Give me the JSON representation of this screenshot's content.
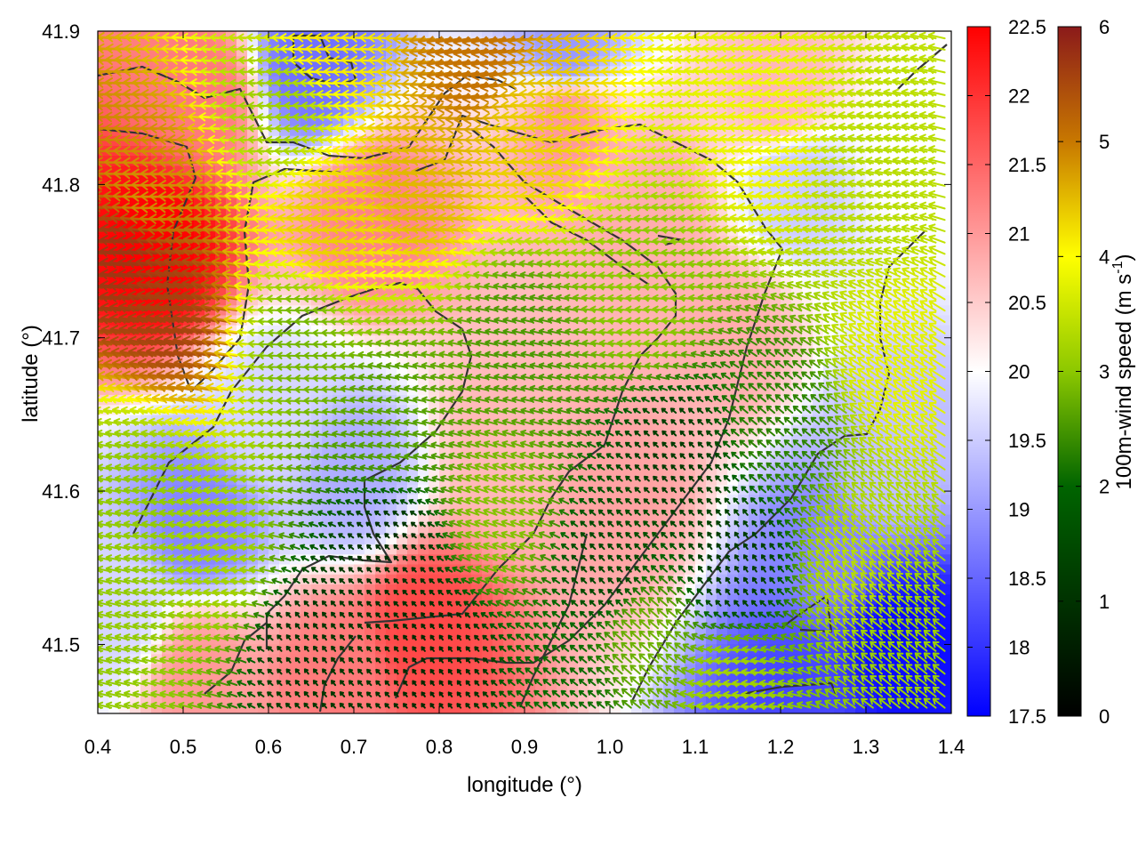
{
  "chart_data": {
    "type": "heatmap",
    "title": "",
    "xlabel": "longitude (°)",
    "ylabel": "latitude (°)",
    "xlim": [
      0.4,
      1.4
    ],
    "ylim": [
      41.455,
      41.9
    ],
    "x_ticks": [
      "0.4",
      "0.5",
      "0.6",
      "0.7",
      "0.8",
      "0.9",
      "1.0",
      "1.1",
      "1.2",
      "1.3",
      "1.4"
    ],
    "y_ticks": [
      "41.5",
      "41.6",
      "41.7",
      "41.8",
      "41.9"
    ],
    "temperature_colorbar": {
      "range": [
        17.5,
        22.5
      ],
      "ticks": [
        "17.5",
        "18",
        "18.5",
        "19",
        "19.5",
        "20",
        "20.5",
        "21",
        "21.5",
        "22",
        "22.5"
      ],
      "colors": [
        "#0000ff",
        "#ffffff",
        "#ff0000"
      ]
    },
    "wind_colorbar": {
      "label": "100m-wind speed (m s",
      "label_sup": "-1",
      "label_end": ")",
      "range": [
        0,
        6
      ],
      "ticks": [
        "0",
        "1",
        "2",
        "3",
        "4",
        "5",
        "6"
      ],
      "colors": [
        "#000000",
        "#006400",
        "#8cc800",
        "#ffff00",
        "#c87800",
        "#8b1a1a"
      ]
    },
    "temperature_field": [
      {
        "lon": 0.47,
        "lat": 41.76,
        "value": 22.5
      },
      {
        "lon": 0.52,
        "lat": 41.86,
        "value": 21.3
      },
      {
        "lon": 0.72,
        "lat": 41.78,
        "value": 21.2
      },
      {
        "lon": 0.95,
        "lat": 41.84,
        "value": 21.0
      },
      {
        "lon": 1.2,
        "lat": 41.86,
        "value": 20.7
      },
      {
        "lon": 0.78,
        "lat": 41.51,
        "value": 21.8
      },
      {
        "lon": 0.68,
        "lat": 41.48,
        "value": 21.3
      },
      {
        "lon": 0.52,
        "lat": 41.48,
        "value": 21.0
      },
      {
        "lon": 1.02,
        "lat": 41.6,
        "value": 20.9
      },
      {
        "lon": 1.14,
        "lat": 41.7,
        "value": 20.8
      },
      {
        "lon": 0.88,
        "lat": 41.63,
        "value": 20.7
      },
      {
        "lon": 1.05,
        "lat": 41.78,
        "value": 20.8
      },
      {
        "lon": 0.65,
        "lat": 41.88,
        "value": 18.6
      },
      {
        "lon": 0.95,
        "lat": 41.89,
        "value": 19.0
      },
      {
        "lon": 0.52,
        "lat": 41.58,
        "value": 18.8
      },
      {
        "lon": 0.7,
        "lat": 41.61,
        "value": 19.2
      },
      {
        "lon": 0.6,
        "lat": 41.65,
        "value": 19.6
      },
      {
        "lon": 1.34,
        "lat": 41.5,
        "value": 17.6
      },
      {
        "lon": 1.22,
        "lat": 41.47,
        "value": 18.2
      },
      {
        "lon": 1.25,
        "lat": 41.56,
        "value": 18.8
      },
      {
        "lon": 1.32,
        "lat": 41.62,
        "value": 19.4
      },
      {
        "lon": 1.22,
        "lat": 41.8,
        "value": 19.5
      },
      {
        "lon": 0.42,
        "lat": 41.52,
        "value": 19.6
      },
      {
        "lon": 1.36,
        "lat": 41.82,
        "value": 20.0
      }
    ],
    "wind_field": [
      {
        "lon": 0.45,
        "lat": 41.75,
        "u": -5.6,
        "v": 0.6
      },
      {
        "lon": 0.5,
        "lat": 41.72,
        "u": -5.4,
        "v": 1.0
      },
      {
        "lon": 0.48,
        "lat": 41.8,
        "u": -4.6,
        "v": 0.2
      },
      {
        "lon": 0.8,
        "lat": 41.8,
        "u": -4.2,
        "v": 0.6
      },
      {
        "lon": 0.68,
        "lat": 41.77,
        "u": -4.0,
        "v": 0.5
      },
      {
        "lon": 0.92,
        "lat": 41.83,
        "u": -4.0,
        "v": 0.4
      },
      {
        "lon": 0.86,
        "lat": 41.88,
        "u": -4.8,
        "v": -0.8
      },
      {
        "lon": 0.68,
        "lat": 41.9,
        "u": -3.8,
        "v": 0.2
      },
      {
        "lon": 1.2,
        "lat": 41.83,
        "u": -3.4,
        "v": 0.4
      },
      {
        "lon": 1.35,
        "lat": 41.68,
        "u": -2.8,
        "v": 1.8
      },
      {
        "lon": 1.3,
        "lat": 41.8,
        "u": -2.8,
        "v": 0.6
      },
      {
        "lon": 1.05,
        "lat": 41.72,
        "u": -2.4,
        "v": 0.3
      },
      {
        "lon": 0.62,
        "lat": 41.85,
        "u": -2.6,
        "v": 0.2
      },
      {
        "lon": 0.65,
        "lat": 41.7,
        "u": -2.2,
        "v": 0.1
      },
      {
        "lon": 0.45,
        "lat": 41.6,
        "u": -2.4,
        "v": 0.5
      },
      {
        "lon": 0.55,
        "lat": 41.55,
        "u": -2.6,
        "v": 0.5
      },
      {
        "lon": 0.44,
        "lat": 41.5,
        "u": -2.4,
        "v": 0.6
      },
      {
        "lon": 0.75,
        "lat": 41.65,
        "u": -1.9,
        "v": 0.4
      },
      {
        "lon": 0.9,
        "lat": 41.7,
        "u": -1.8,
        "v": 0.4
      },
      {
        "lon": 0.88,
        "lat": 41.58,
        "u": -2.2,
        "v": 0.8
      },
      {
        "lon": 0.75,
        "lat": 41.55,
        "u": -0.4,
        "v": 0.4
      },
      {
        "lon": 0.8,
        "lat": 41.49,
        "u": -0.3,
        "v": 0.4
      },
      {
        "lon": 0.65,
        "lat": 41.5,
        "u": -0.4,
        "v": 0.5
      },
      {
        "lon": 1.0,
        "lat": 41.55,
        "u": -0.6,
        "v": 0.6
      },
      {
        "lon": 1.08,
        "lat": 41.62,
        "u": -0.5,
        "v": 0.5
      },
      {
        "lon": 1.15,
        "lat": 41.55,
        "u": -0.4,
        "v": 0.6
      },
      {
        "lon": 1.05,
        "lat": 41.5,
        "u": -1.6,
        "v": 1.4
      },
      {
        "lon": 1.3,
        "lat": 41.55,
        "u": -2.2,
        "v": 1.8
      },
      {
        "lon": 1.36,
        "lat": 41.5,
        "u": -2.0,
        "v": 1.6
      },
      {
        "lon": 1.15,
        "lat": 41.47,
        "u": -2.6,
        "v": 0.4
      },
      {
        "lon": 0.95,
        "lat": 41.47,
        "u": -1.0,
        "v": 0.8
      },
      {
        "lon": 1.2,
        "lat": 41.64,
        "u": -1.2,
        "v": 1.0
      }
    ]
  }
}
